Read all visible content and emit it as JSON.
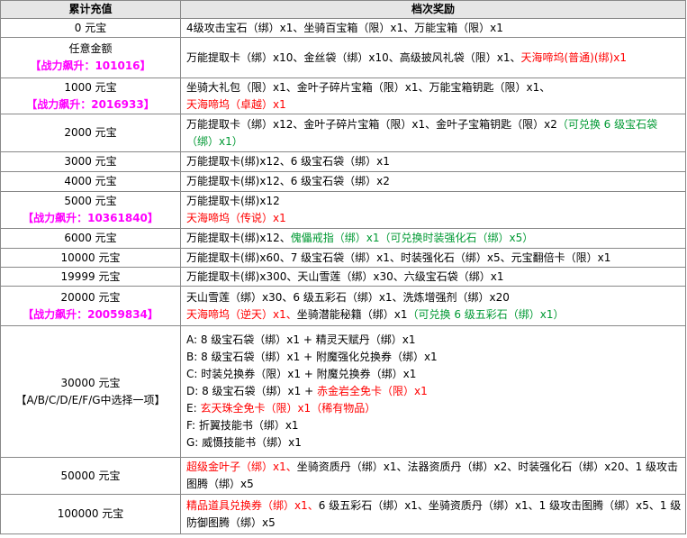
{
  "table": {
    "header": [
      "累计充值",
      "档次奖励"
    ],
    "rows": [
      {
        "amount": [
          {
            "text": "0 元宝"
          }
        ],
        "reward": [
          [
            {
              "text": "4级攻击宝石（绑）x1、坐骑百宝箱（限）x1、万能宝箱（限）x1"
            }
          ]
        ]
      },
      {
        "amount": [
          {
            "text": "任意金额"
          },
          {
            "text": "【战力飙升：101016】",
            "color": "#ff00ff"
          }
        ],
        "reward": [
          [
            {
              "text": "万能提取卡（绑）x10、金丝袋（绑）x10、高级披风礼袋（限）x1、"
            },
            {
              "text": "天海啼坞(普通)(绑)x1",
              "color": "#ff0000"
            }
          ]
        ]
      },
      {
        "amount": [
          {
            "text": "1000 元宝"
          },
          {
            "text": "【战力飙升：2016933】",
            "color": "#ff00ff"
          }
        ],
        "reward": [
          [
            {
              "text": "坐骑大礼包（限）x1、金叶子碎片宝箱（限）x1、万能宝箱钥匙（限）x1、"
            }
          ],
          [
            {
              "text": "天海啼坞（卓越）x1",
              "color": "#ff0000"
            }
          ]
        ]
      },
      {
        "amount": [
          {
            "text": "2000 元宝"
          }
        ],
        "reward": [
          [
            {
              "text": "万能提取卡（绑）x12、金叶子碎片宝箱（限）x1、金叶子宝箱钥匙（限）x2"
            },
            {
              "text": "（可兑换 6 级宝石袋（绑）x1）",
              "color": "#009933"
            }
          ]
        ]
      },
      {
        "amount": [
          {
            "text": "3000 元宝"
          }
        ],
        "reward": [
          [
            {
              "text": "万能提取卡(绑)x12、6 级宝石袋（绑）x1"
            }
          ]
        ]
      },
      {
        "amount": [
          {
            "text": "4000 元宝"
          }
        ],
        "reward": [
          [
            {
              "text": "万能提取卡(绑)x12、6 级宝石袋（绑）x2"
            }
          ]
        ]
      },
      {
        "amount": [
          {
            "text": "5000 元宝"
          },
          {
            "text": "【战力飙升：10361840】",
            "color": "#ff00ff"
          }
        ],
        "reward": [
          [
            {
              "text": "万能提取卡(绑)x12"
            }
          ],
          [
            {
              "text": "天海啼坞（传说）x1",
              "color": "#ff0000"
            }
          ]
        ]
      },
      {
        "amount": [
          {
            "text": "6000 元宝"
          }
        ],
        "reward": [
          [
            {
              "text": "万能提取卡(绑)x12、"
            },
            {
              "text": "傀儡戒指（绑）x1（可兑换时装强化石（绑）x5）",
              "color": "#009933"
            }
          ]
        ]
      },
      {
        "amount": [
          {
            "text": "10000 元宝"
          }
        ],
        "reward": [
          [
            {
              "text": "万能提取卡(绑)x60、7 级宝石袋（绑）x1、时装强化石（绑）x5、元宝翻倍卡（限）x1"
            }
          ]
        ]
      },
      {
        "amount": [
          {
            "text": "19999 元宝"
          }
        ],
        "reward": [
          [
            {
              "text": "万能提取卡(绑)x300、天山雪莲（绑）x30、六级宝石袋（绑）x1"
            }
          ]
        ]
      },
      {
        "amount": [
          {
            "text": "20000 元宝"
          },
          {
            "text": "【战力飙升：20059834】",
            "color": "#ff00ff"
          }
        ],
        "reward": [
          [
            {
              "text": "天山雪莲（绑）x30、6 级五彩石（绑）x1、洗炼增强剂（绑）x20"
            }
          ],
          [
            {
              "text": "天海啼坞（逆天）x1、",
              "color": "#ff0000"
            },
            {
              "text": "坐骑潜能秘籍（绑）x1"
            },
            {
              "text": "（可兑换 6 级五彩石（绑）x1）",
              "color": "#009933"
            }
          ]
        ]
      },
      {
        "amount": [
          {
            "text": "30000 元宝"
          },
          {
            "text": "【A/B/C/D/E/F/G中选择一项】"
          }
        ],
        "reward": [
          [
            {
              "text": "A: 8 级宝石袋（绑）x1 + 精灵天赋丹（绑）x1"
            }
          ],
          [
            {
              "text": "B: 8 级宝石袋（绑）x1 + 附魔强化兑换券（绑）x1"
            }
          ],
          [
            {
              "text": "C: 时装兑换券（限）x1 + 附魔兑换券（绑）x1"
            }
          ],
          [
            {
              "text": "D: 8 级宝石袋（绑）x1 + "
            },
            {
              "text": "赤金岩全免卡（限）x1",
              "color": "#ff0000"
            }
          ],
          [
            {
              "text": "E: "
            },
            {
              "text": "玄天珠全免卡（限）x1（稀有物品）",
              "color": "#ff0000"
            }
          ],
          [
            {
              "text": "F: 折翼技能书（绑）x1"
            }
          ],
          [
            {
              "text": "G: 威慑技能书（绑）x1"
            }
          ]
        ]
      },
      {
        "amount": [
          {
            "text": "50000 元宝"
          }
        ],
        "reward": [
          [
            {
              "text": "超级金叶子（绑）x1、",
              "color": "#ff0000"
            },
            {
              "text": "坐骑资质丹（绑）x1、法器资质丹（绑）x2、时装强化石（绑）x20、1 级攻击图腾（绑）x5"
            }
          ]
        ]
      },
      {
        "amount": [
          {
            "text": "100000 元宝"
          }
        ],
        "reward": [
          [
            {
              "text": "精品道具兑换券（绑）x1、",
              "color": "#ff0000"
            },
            {
              "text": "6 级五彩石（绑）x1、坐骑资质丹（绑）x1、1 级攻击图腾（绑）x5、1 级防御图腾（绑）x5"
            }
          ]
        ]
      }
    ]
  }
}
